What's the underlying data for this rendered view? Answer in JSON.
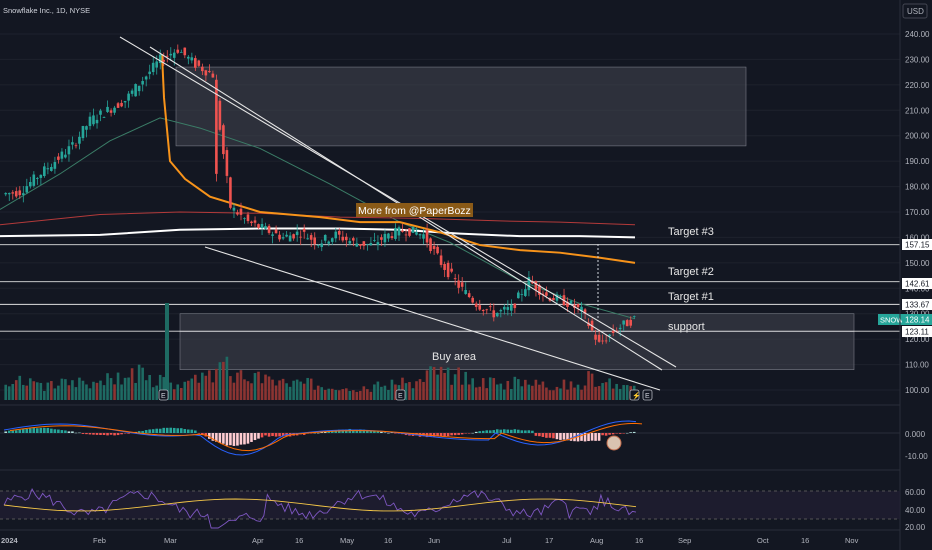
{
  "title": "Snowflake Inc., 1D, NYSE",
  "currency": "USD",
  "promo": "More from @PaperBozz",
  "annotations": {
    "target3": "Target #3",
    "target2": "Target #2",
    "target1": "Target #1",
    "support": "support",
    "buy_area": "Buy area"
  },
  "badges": {
    "ticker": "SNOW",
    "current": "128.14",
    "level_157": "157.15",
    "level_142": "142.61",
    "level_133": "133.67",
    "level_123": "123.11"
  },
  "colors": {
    "bg": "#131722",
    "up": "#26a69a",
    "down": "#ef5350",
    "ema_orange": "#f7931a",
    "sma_white": "#ffffff",
    "sma_red": "#b33a3a",
    "sma_green": "#3b7d67",
    "macd": "#2962ff",
    "signal": "#ff6d00",
    "rsi": "#7e57c2",
    "rsi_ma": "#f7c948"
  },
  "chart_data": {
    "type": "candlestick",
    "title": "Snowflake Inc., 1D, NYSE",
    "x_ticks": [
      "2024",
      "Feb",
      "Mar",
      "Apr",
      "16",
      "May",
      "16",
      "Jun",
      "Jul",
      "17",
      "Aug",
      "16",
      "Sep",
      "Oct",
      "16",
      "Nov"
    ],
    "y_ticks": [
      "240.00",
      "230.00",
      "220.00",
      "210.00",
      "200.00",
      "190.00",
      "180.00",
      "170.00",
      "160.00",
      "150.00",
      "140.00",
      "130.00",
      "120.00",
      "110.00",
      "100.00"
    ],
    "ylim": [
      100,
      240
    ],
    "ohlc_weekly": [
      [
        177,
        180,
        172,
        178
      ],
      [
        178,
        186,
        176,
        184
      ],
      [
        184,
        192,
        182,
        190
      ],
      [
        190,
        198,
        188,
        196
      ],
      [
        196,
        210,
        194,
        206
      ],
      [
        206,
        214,
        200,
        210
      ],
      [
        210,
        218,
        205,
        214
      ],
      [
        214,
        226,
        212,
        222
      ],
      [
        222,
        234,
        218,
        230
      ],
      [
        230,
        238,
        226,
        234
      ],
      [
        234,
        236,
        224,
        228
      ],
      [
        228,
        232,
        220,
        224
      ],
      [
        224,
        228,
        168,
        172
      ],
      [
        172,
        178,
        162,
        166
      ],
      [
        166,
        170,
        158,
        163
      ],
      [
        163,
        168,
        156,
        160
      ],
      [
        160,
        166,
        155,
        162
      ],
      [
        162,
        166,
        154,
        158
      ],
      [
        158,
        163,
        155,
        161
      ],
      [
        161,
        164,
        156,
        158
      ],
      [
        158,
        162,
        154,
        157
      ],
      [
        157,
        163,
        155,
        161
      ],
      [
        161,
        165,
        158,
        163
      ],
      [
        163,
        166,
        159,
        161
      ],
      [
        161,
        164,
        148,
        150
      ],
      [
        150,
        153,
        138,
        141
      ],
      [
        141,
        144,
        131,
        134
      ],
      [
        134,
        137,
        127,
        130
      ],
      [
        130,
        134,
        127,
        132
      ],
      [
        132,
        145,
        131,
        143
      ],
      [
        143,
        145,
        134,
        137
      ],
      [
        137,
        140,
        132,
        135
      ],
      [
        135,
        138,
        128,
        131
      ],
      [
        131,
        133,
        112,
        118
      ],
      [
        118,
        126,
        116,
        124
      ],
      [
        124,
        130,
        122,
        128
      ]
    ],
    "volume_weekly": [
      42,
      38,
      35,
      40,
      45,
      48,
      50,
      62,
      44,
      40,
      46,
      52,
      78,
      60,
      50,
      42,
      40,
      38,
      36,
      34,
      32,
      36,
      38,
      40,
      70,
      58,
      48,
      44,
      40,
      46,
      38,
      36,
      34,
      52,
      40,
      30
    ],
    "lines": {
      "ema_orange": [
        [
          162,
          232
        ],
        [
          164,
          215
        ],
        [
          170,
          190
        ],
        [
          185,
          183
        ],
        [
          210,
          176
        ],
        [
          260,
          170
        ],
        [
          320,
          168
        ],
        [
          360,
          166
        ],
        [
          400,
          166
        ],
        [
          440,
          162
        ],
        [
          480,
          157
        ],
        [
          520,
          155
        ],
        [
          560,
          154
        ],
        [
          600,
          152
        ],
        [
          635,
          150
        ]
      ],
      "sma_white": [
        [
          0,
          160.5
        ],
        [
          100,
          161
        ],
        [
          180,
          163
        ],
        [
          260,
          163.5
        ],
        [
          340,
          163.5
        ],
        [
          400,
          163
        ],
        [
          460,
          161.5
        ],
        [
          520,
          160.5
        ],
        [
          580,
          160.5
        ],
        [
          635,
          160
        ]
      ],
      "sma_red": [
        [
          0,
          165
        ],
        [
          100,
          169
        ],
        [
          180,
          170
        ],
        [
          260,
          169.5
        ],
        [
          340,
          168
        ],
        [
          420,
          167.5
        ],
        [
          500,
          166.5
        ],
        [
          560,
          166
        ],
        [
          635,
          165
        ]
      ],
      "sma_green": [
        [
          0,
          171
        ],
        [
          60,
          185
        ],
        [
          110,
          198
        ],
        [
          160,
          207
        ],
        [
          200,
          203
        ],
        [
          260,
          195
        ],
        [
          330,
          181
        ],
        [
          400,
          166
        ],
        [
          450,
          158
        ],
        [
          520,
          143
        ],
        [
          580,
          134
        ],
        [
          635,
          128
        ]
      ]
    },
    "levels": [
      157.15,
      142.61,
      133.67,
      123.11
    ],
    "zones": [
      {
        "from": 196,
        "to": 227
      },
      {
        "from": 123,
        "to": 130
      },
      {
        "from": 108,
        "to": 123
      }
    ],
    "indicators": {
      "macd_axis": [
        "0.000",
        "-10.00"
      ],
      "rsi_axis": [
        "60.00",
        "40.00",
        "20.00"
      ]
    }
  }
}
